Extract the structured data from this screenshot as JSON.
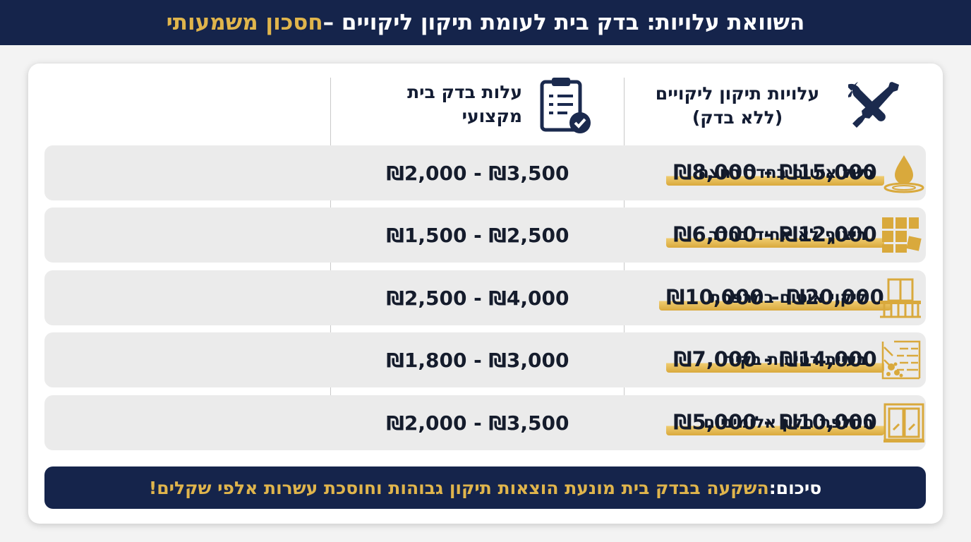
{
  "header": {
    "title_main": "השוואת עלויות: בדק בית לעומת תיקון ליקויים – ",
    "title_highlight": "חסכון משמעותי"
  },
  "columns": {
    "repair_line1": "עלויות תיקון ליקויים",
    "repair_line2": "(ללא בדק)",
    "inspection_line1": "עלות בדק בית",
    "inspection_line2": "מקצועי"
  },
  "rows": [
    {
      "category": "כשל איטום בחדר רחצה",
      "icon": "water-drop-icon",
      "inspection": "₪2,000 - ₪3,500",
      "repair": "₪8,000 - ₪15,000"
    },
    {
      "category": "ריצוף לא אחיד בחדר",
      "icon": "floor-tiles-icon",
      "inspection": "₪1,500 - ₪2,500",
      "repair": "₪6,000 - ₪12,000"
    },
    {
      "category": "ליקוי איטום במרפסת",
      "icon": "balcony-icon",
      "inspection": "₪2,500 - ₪4,000",
      "repair": "₪10,000 - ₪20,000"
    },
    {
      "category": "בעיית רטיבות בקיר",
      "icon": "damp-wall-icon",
      "inspection": "₪1,800 - ₪3,000",
      "repair": "₪7,000 - ₪14,000"
    },
    {
      "category": "החלפת חלון אלומיניום",
      "icon": "aluminum-window-icon",
      "inspection": "₪2,000 - ₪3,500",
      "repair": "₪5,000 - ₪10,000"
    }
  ],
  "summary": {
    "label": "סיכום: ",
    "text": "השקעה בבדק בית מונעת הוצאות תיקון גבוהות וחוסכת עשרות אלפי שקלים!"
  },
  "colors": {
    "navy": "#15244b",
    "gold": "#e0b54c",
    "row_bg": "#ebebeb"
  }
}
